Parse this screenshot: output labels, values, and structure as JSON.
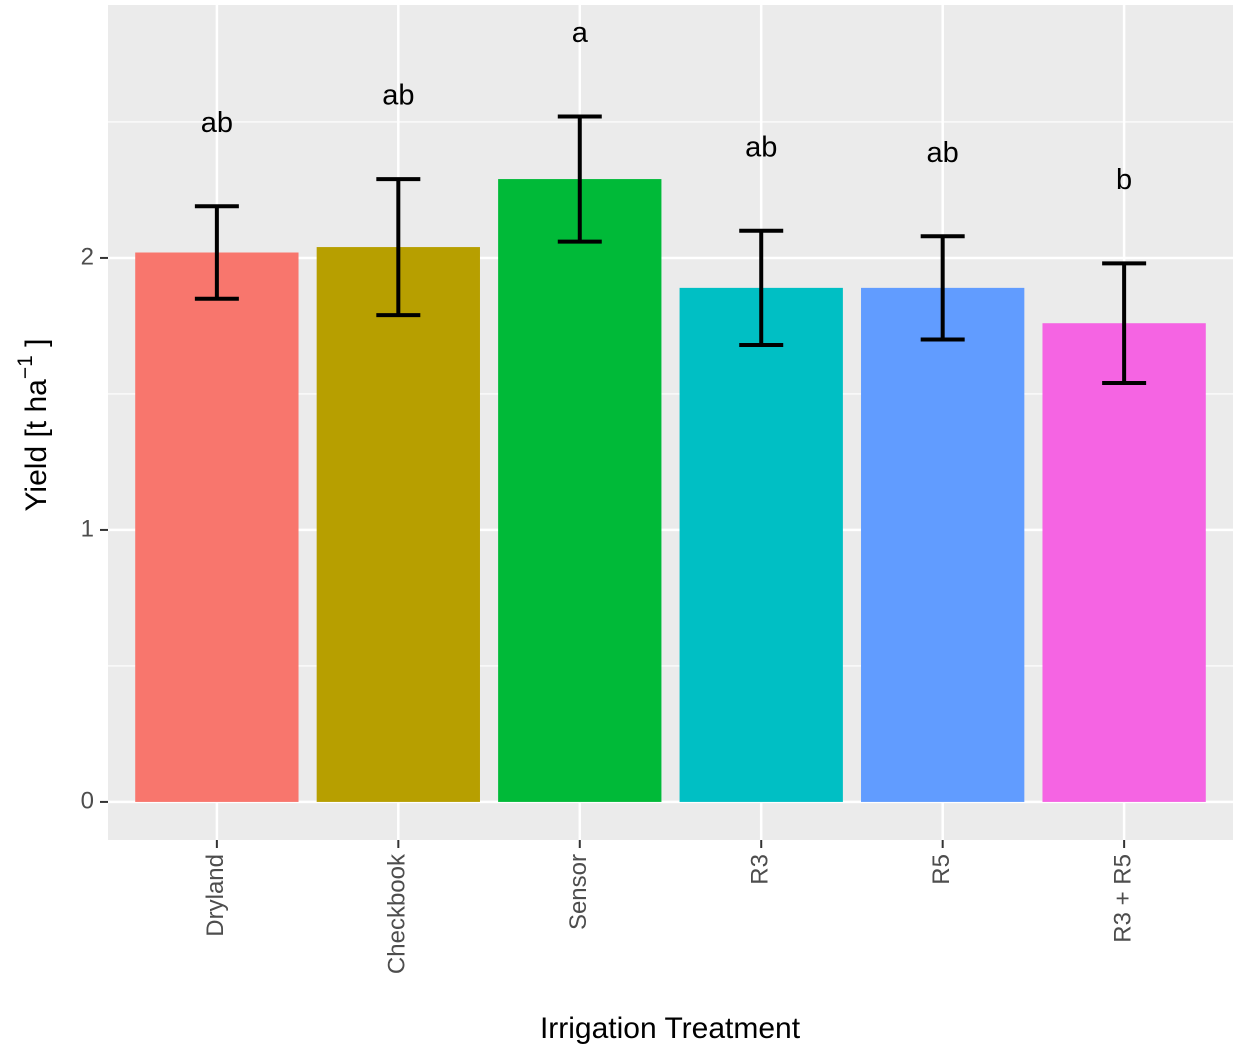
{
  "chart_data": {
    "type": "bar",
    "xlabel": "Irrigation Treatment",
    "ylabel": "Yield [t  ha",
    "ylabel_sup": "−1",
    "ylabel_end": " ]",
    "categories": [
      "Dryland",
      "Checkbook",
      "Sensor",
      "R3",
      "R5",
      "R3 + R5"
    ],
    "values": [
      2.02,
      2.04,
      2.29,
      1.89,
      1.89,
      1.76
    ],
    "errors": [
      0.17,
      0.25,
      0.23,
      0.21,
      0.19,
      0.22
    ],
    "letters": [
      "ab",
      "ab",
      "a",
      "ab",
      "ab",
      "b"
    ],
    "colors": [
      "#f8766d",
      "#b79f00",
      "#00ba38",
      "#00bfc4",
      "#619cff",
      "#f564e3"
    ],
    "ylim": [
      -0.14,
      2.93
    ],
    "yticks": [
      0,
      1,
      2
    ],
    "minor_yticks": [
      0.5,
      1.5,
      2.5
    ],
    "grid": true
  }
}
